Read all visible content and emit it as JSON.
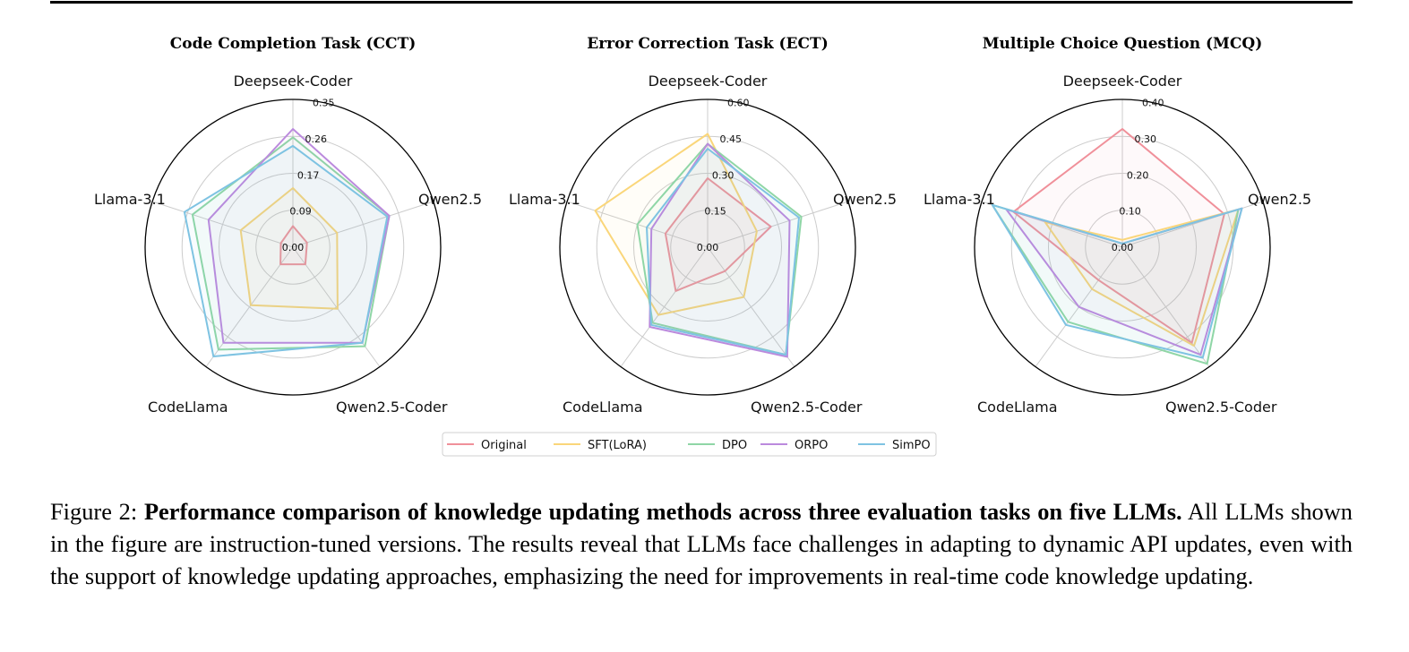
{
  "chart_data": [
    {
      "type": "radar",
      "title": "Code Completion Task (CCT)",
      "categories": [
        "Deepseek-Coder",
        "Qwen2.5",
        "Qwen2.5-Coder",
        "CodeLlama",
        "Llama-3.1"
      ],
      "rlim": [
        0,
        0.35
      ],
      "tick_labels": [
        "0.00",
        "0.09",
        "0.17",
        "0.26",
        "0.35"
      ],
      "series": [
        {
          "name": "Original",
          "values": [
            0.05,
            0.035,
            0.05,
            0.05,
            0.03
          ]
        },
        {
          "name": "SFT(LoRA)",
          "values": [
            0.14,
            0.11,
            0.18,
            0.17,
            0.13
          ]
        },
        {
          "name": "DPO",
          "values": [
            0.26,
            0.24,
            0.29,
            0.3,
            0.25
          ]
        },
        {
          "name": "ORPO",
          "values": [
            0.28,
            0.24,
            0.28,
            0.28,
            0.21
          ]
        },
        {
          "name": "SimPO",
          "values": [
            0.24,
            0.235,
            0.28,
            0.32,
            0.27
          ]
        }
      ],
      "grid": true
    },
    {
      "type": "radar",
      "title": "Error Correction Task (ECT)",
      "categories": [
        "Deepseek-Coder",
        "Qwen2.5",
        "Qwen2.5-Coder",
        "CodeLlama",
        "Llama-3.1"
      ],
      "rlim": [
        0,
        0.6
      ],
      "tick_labels": [
        "0.00",
        "0.15",
        "0.30",
        "0.45",
        "0.60"
      ],
      "series": [
        {
          "name": "Original",
          "values": [
            0.28,
            0.27,
            0.12,
            0.22,
            0.18
          ]
        },
        {
          "name": "SFT(LoRA)",
          "values": [
            0.46,
            0.21,
            0.25,
            0.34,
            0.48
          ]
        },
        {
          "name": "DPO",
          "values": [
            0.42,
            0.4,
            0.54,
            0.38,
            0.3
          ]
        },
        {
          "name": "ORPO",
          "values": [
            0.42,
            0.35,
            0.55,
            0.4,
            0.24
          ]
        },
        {
          "name": "SimPO",
          "values": [
            0.4,
            0.39,
            0.54,
            0.39,
            0.26
          ]
        }
      ],
      "grid": true
    },
    {
      "type": "radar",
      "title": "Multiple Choice Question (MCQ)",
      "categories": [
        "Deepseek-Coder",
        "Qwen2.5",
        "Qwen2.5-Coder",
        "CodeLlama",
        "Llama-3.1"
      ],
      "rlim": [
        0,
        0.4
      ],
      "tick_labels": [
        "0.00",
        "0.10",
        "0.20",
        "0.30",
        "0.40"
      ],
      "series": [
        {
          "name": "Original",
          "values": [
            0.32,
            0.29,
            0.32,
            0.11,
            0.31
          ]
        },
        {
          "name": "SFT(LoRA)",
          "values": [
            0.02,
            0.33,
            0.33,
            0.14,
            0.22
          ]
        },
        {
          "name": "DPO",
          "values": [
            0.01,
            0.33,
            0.39,
            0.25,
            0.37
          ]
        },
        {
          "name": "ORPO",
          "values": [
            0.01,
            0.34,
            0.36,
            0.2,
            0.33
          ]
        },
        {
          "name": "SimPO",
          "values": [
            0.01,
            0.34,
            0.37,
            0.26,
            0.37
          ]
        }
      ],
      "grid": true
    }
  ],
  "legend": {
    "placement": "bottom-center",
    "entries": [
      {
        "name": "Original",
        "color": "#f0909a"
      },
      {
        "name": "SFT(LoRA)",
        "color": "#fad67a"
      },
      {
        "name": "DPO",
        "color": "#8fd6a6"
      },
      {
        "name": "ORPO",
        "color": "#bb8add"
      },
      {
        "name": "SimPO",
        "color": "#7ec3e2"
      }
    ]
  },
  "caption": {
    "prefix": "Figure 2: ",
    "bold": "Performance comparison of knowledge updating methods across three evaluation tasks on five LLMs.",
    "text": " All LLMs shown in the figure are instruction-tuned versions. The results reveal that LLMs face challenges in adapting to dynamic API updates, even with the support of knowledge updating approaches, emphasizing the need for improvements in real-time code knowledge updating."
  }
}
